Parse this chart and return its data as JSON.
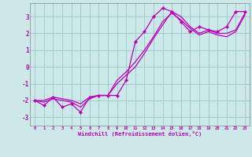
{
  "xlabel": "Windchill (Refroidissement éolien,°C)",
  "bg_color": "#cde8e8",
  "grid_color": "#a0cccc",
  "line_color": "#bb00bb",
  "xlim": [
    -0.5,
    23.5
  ],
  "ylim": [
    -3.5,
    3.8
  ],
  "yticks": [
    -3,
    -2,
    -1,
    0,
    1,
    2,
    3
  ],
  "xticks": [
    0,
    1,
    2,
    3,
    4,
    5,
    6,
    7,
    8,
    9,
    10,
    11,
    12,
    13,
    14,
    15,
    16,
    17,
    18,
    19,
    20,
    21,
    22,
    23
  ],
  "series1_x": [
    0,
    1,
    2,
    3,
    4,
    5,
    6,
    7,
    8,
    9,
    10,
    11,
    12,
    13,
    14,
    15,
    16,
    17,
    18,
    19,
    20,
    21,
    22,
    23
  ],
  "series1_y": [
    -2.0,
    -2.3,
    -1.8,
    -2.4,
    -2.2,
    -2.7,
    -1.8,
    -1.7,
    -1.7,
    -1.7,
    -0.8,
    1.5,
    2.1,
    3.0,
    3.5,
    3.3,
    2.7,
    2.1,
    2.4,
    2.2,
    2.1,
    2.4,
    3.3,
    3.3
  ],
  "series2_x": [
    0,
    1,
    2,
    3,
    4,
    5,
    6,
    7,
    8,
    9,
    10,
    11,
    12,
    13,
    14,
    15,
    16,
    17,
    18,
    19,
    20,
    21,
    22,
    23
  ],
  "series2_y": [
    -2.0,
    -2.1,
    -1.9,
    -2.0,
    -2.1,
    -2.4,
    -1.9,
    -1.7,
    -1.7,
    -1.0,
    -0.5,
    0.0,
    0.8,
    1.7,
    2.5,
    3.3,
    3.0,
    2.4,
    2.0,
    2.2,
    2.0,
    2.0,
    2.2,
    3.2
  ],
  "series3_x": [
    0,
    1,
    2,
    3,
    4,
    5,
    6,
    7,
    8,
    9,
    10,
    11,
    12,
    13,
    14,
    15,
    16,
    17,
    18,
    19,
    20,
    21,
    22,
    23
  ],
  "series3_y": [
    -2.0,
    -2.0,
    -1.8,
    -1.9,
    -2.0,
    -2.2,
    -1.8,
    -1.7,
    -1.7,
    -0.8,
    -0.3,
    0.3,
    1.0,
    1.8,
    2.7,
    3.2,
    2.8,
    2.3,
    1.9,
    2.1,
    1.9,
    1.8,
    2.1,
    3.1
  ]
}
